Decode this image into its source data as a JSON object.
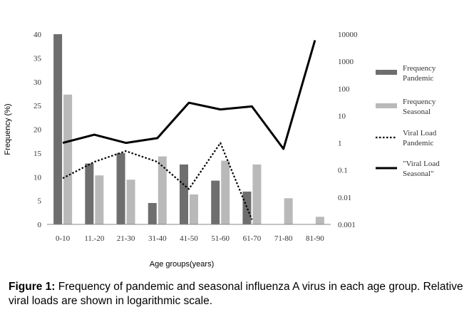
{
  "caption": {
    "label": "Figure 1:",
    "text": "Frequency of pandemic and seasonal influenza A virus in each age group. Relative viral loads are shown in logarithmic scale."
  },
  "chart_data": {
    "type": "bar",
    "xlabel": "Age  groups(years)",
    "ylabel": "Frequency (%)",
    "ylim": [
      0,
      40
    ],
    "y_ticks": [
      "0",
      "5",
      "10",
      "15",
      "20",
      "25",
      "30",
      "35",
      "40"
    ],
    "y2_scale": "log",
    "y2lim": [
      0.001,
      10000
    ],
    "y2_ticks": [
      "0.001",
      "0.01",
      "0.1",
      "1",
      "10",
      "100",
      "1000",
      "10000"
    ],
    "categories": [
      "0-10",
      "11.-20",
      "21-30",
      "31-40",
      "41-50",
      "51-60",
      "61-70",
      "71-80",
      "81-90"
    ],
    "grid": false,
    "legend_position": "right",
    "series": [
      {
        "name": "Frequency Pandemic",
        "legend_lines": [
          "Frequency",
          "Pandemic"
        ],
        "kind": "bar",
        "axis": "left",
        "color": "#6e6e6e",
        "values": [
          40,
          12.8,
          15,
          4.5,
          12.6,
          9.2,
          6.9,
          null,
          null
        ]
      },
      {
        "name": "Frequency Seasonal",
        "legend_lines": [
          "Frequency",
          "Seasonal"
        ],
        "kind": "bar",
        "axis": "left",
        "color": "#b9b9b9",
        "values": [
          27.3,
          10.3,
          9.4,
          14.3,
          6.3,
          13.4,
          12.6,
          5.5,
          1.6
        ]
      },
      {
        "name": "Viral Load Pandemic",
        "legend_lines": [
          "Viral Load",
          "Pandemic"
        ],
        "kind": "line",
        "style": "dotted",
        "axis": "right",
        "color": "#000000",
        "values": [
          0.05,
          0.2,
          0.5,
          0.2,
          0.02,
          1.0,
          0.0015,
          null,
          null
        ]
      },
      {
        "name": "\"Viral Load Seasonal\"",
        "legend_lines": [
          "\"Viral Load",
          "Seasonal\""
        ],
        "kind": "line",
        "style": "solid",
        "axis": "right",
        "color": "#000000",
        "values": [
          1.0,
          2.0,
          1.0,
          1.5,
          30,
          17,
          22,
          0.6,
          6000
        ]
      }
    ]
  }
}
